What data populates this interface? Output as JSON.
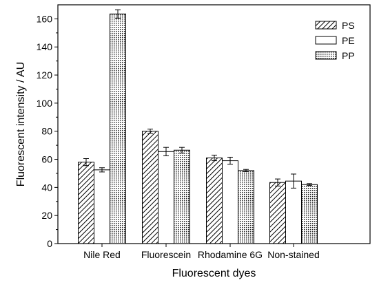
{
  "chart_data": {
    "type": "bar",
    "xlabel": "Fluorescent dyes",
    "ylabel": "Fluorescent intensity / AU",
    "ylim": [
      0,
      170
    ],
    "yticks": [
      0,
      20,
      40,
      60,
      80,
      100,
      120,
      140,
      160
    ],
    "categories": [
      "Nile Red",
      "Fluorescein",
      "Rhodamine 6G",
      "Non-stained"
    ],
    "series": [
      {
        "name": "PS",
        "pattern": "diagonal-hatch",
        "values": [
          58,
          80,
          61,
          43.5
        ],
        "errors": [
          2.5,
          1.5,
          2.0,
          2.5
        ]
      },
      {
        "name": "PE",
        "pattern": "empty",
        "values": [
          52.5,
          65.5,
          59,
          44.5
        ],
        "errors": [
          1.5,
          3.0,
          2.5,
          5.0
        ]
      },
      {
        "name": "PP",
        "pattern": "dots",
        "values": [
          163.5,
          66.5,
          52,
          42
        ],
        "errors": [
          3.0,
          2.0,
          0.8,
          0.7
        ]
      }
    ],
    "legend_position": "top-right",
    "grid": false,
    "colors": {
      "axis": "#000000",
      "fill": "#ffffff"
    }
  }
}
